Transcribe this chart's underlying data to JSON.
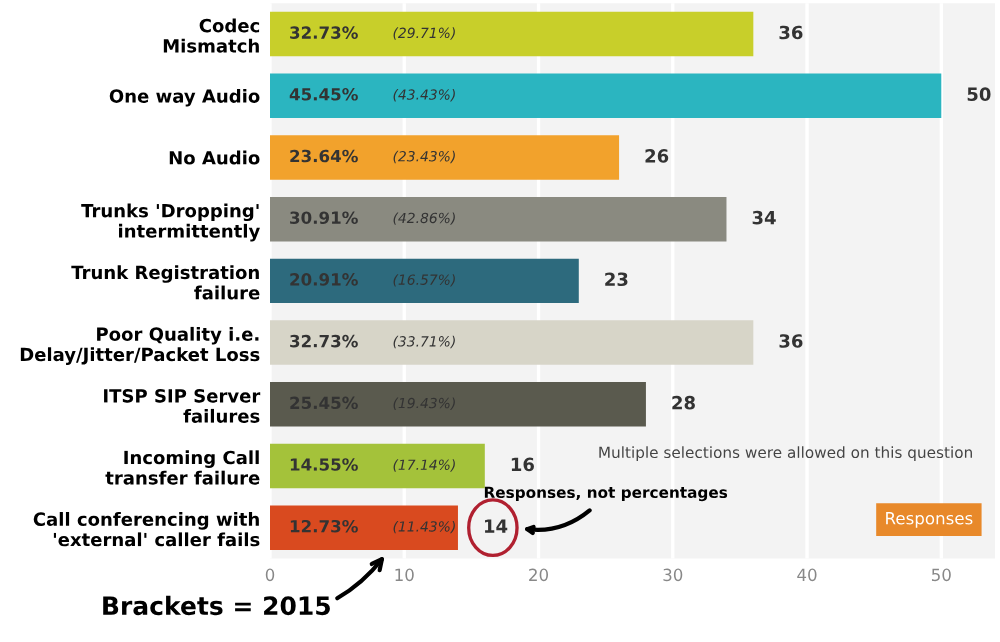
{
  "chart_data": {
    "type": "bar",
    "orientation": "horizontal",
    "categories": [
      "Codec\nMismatch",
      "One way Audio",
      "No Audio",
      "Trunks 'Dropping'\nintermittently",
      "Trunk Registration\nfailure",
      "Poor Quality i.e.\nDelay/Jitter/Packet Loss",
      "ITSP SIP Server\nfailures",
      "Incoming Call\ntransfer failure",
      "Call conferencing with\n'external' caller fails"
    ],
    "series": [
      {
        "name": "Responses",
        "color": "#e8892a",
        "values": [
          36,
          50,
          26,
          34,
          23,
          36,
          28,
          16,
          14
        ],
        "colors": [
          "#c8cf2a",
          "#2bb5c0",
          "#f2a22c",
          "#8a8a80",
          "#2d6a7d",
          "#d7d5c8",
          "#5a5a4e",
          "#a4c23a",
          "#d94a1f"
        ]
      }
    ],
    "data_labels": true,
    "xlim": [
      0,
      54
    ],
    "xticks": [
      0,
      10,
      20,
      30,
      40,
      50
    ],
    "grid": "x",
    "legend": "bottom right",
    "annotations": [
      "32.73%",
      "(29.71%)",
      "45.45%",
      "(43.43%)",
      "23.64%",
      "(23.43%)",
      "30.91%",
      "(42.86%)",
      "20.91%",
      "(16.57%)",
      "32.73%",
      "(33.71%)",
      "25.45%",
      "(19.43%)",
      "14.55%",
      "(17.14%)",
      "12.73%",
      "(11.43%)",
      "Responses, not percentages",
      "Brackets = 2015",
      "Multiple selections were allowed on this question"
    ]
  }
}
